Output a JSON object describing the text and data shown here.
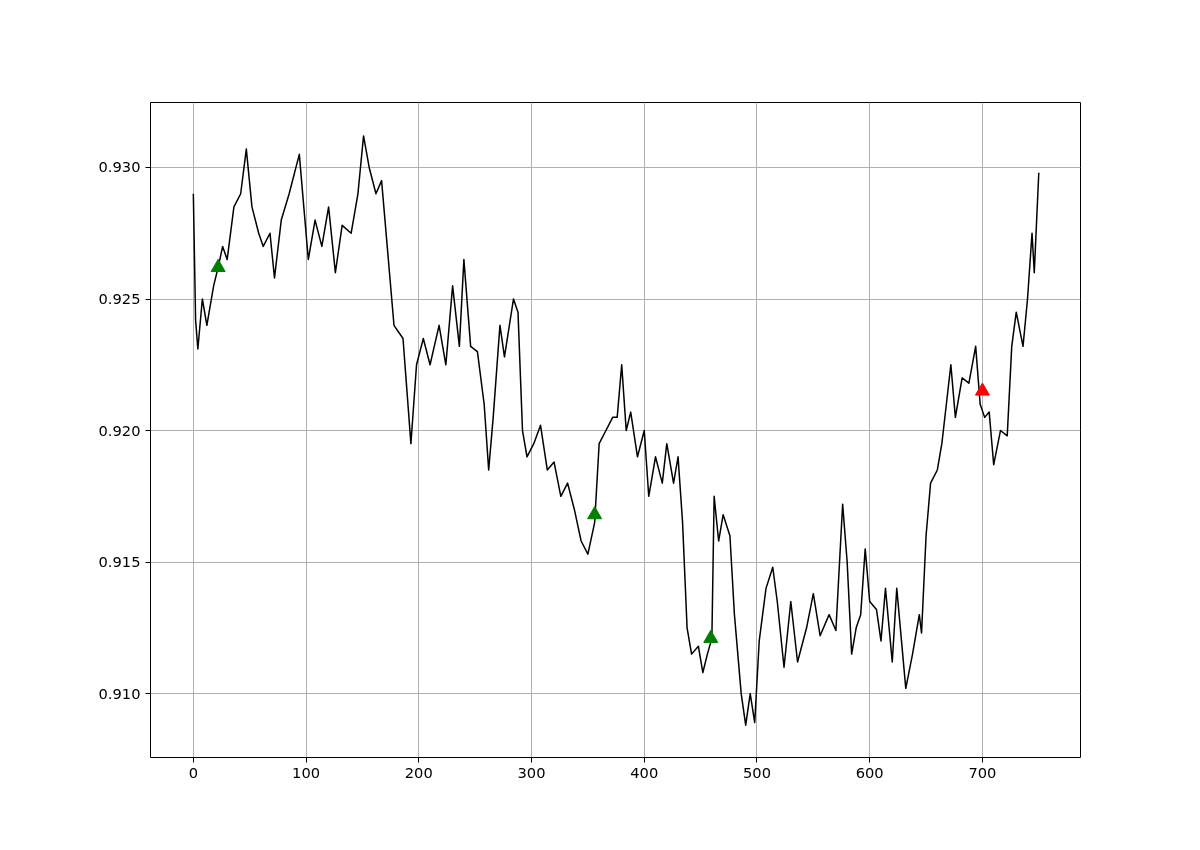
{
  "chart_data": {
    "type": "line",
    "xlim": [
      -38,
      787
    ],
    "ylim": [
      0.90757,
      0.93247
    ],
    "xticks": [
      0,
      100,
      200,
      300,
      400,
      500,
      600,
      700
    ],
    "yticks": [
      {
        "value": 0.91,
        "label": "0.910"
      },
      0.915,
      {
        "value": 0.92,
        "label": "0.920"
      },
      0.925,
      {
        "value": 0.93,
        "label": "0.930"
      }
    ],
    "grid": true,
    "line_style": "solid",
    "marker": "none",
    "series": [
      {
        "color": "#000000",
        "x": [
          0,
          2,
          4,
          8,
          12,
          18,
          22,
          26,
          30,
          36,
          42,
          47,
          52,
          58,
          62,
          68,
          72,
          78,
          85,
          94,
          98,
          102,
          108,
          114,
          120,
          126,
          132,
          140,
          146,
          151,
          156,
          162,
          167,
          172,
          178,
          186,
          193,
          198,
          204,
          210,
          218,
          224,
          230,
          236,
          240,
          246,
          252,
          258,
          262,
          266,
          272,
          276,
          284,
          288,
          292,
          296,
          302,
          308,
          314,
          320,
          326,
          332,
          338,
          344,
          350,
          356,
          360,
          366,
          372,
          376,
          380,
          384,
          388,
          394,
          400,
          404,
          410,
          416,
          420,
          426,
          430,
          434,
          438,
          442,
          448,
          452,
          456,
          460,
          462,
          466,
          470,
          476,
          480,
          486,
          490,
          494,
          498,
          502,
          508,
          514,
          518,
          524,
          530,
          536,
          544,
          550,
          556,
          564,
          570,
          576,
          580,
          584,
          588,
          592,
          596,
          600,
          606,
          610,
          614,
          620,
          624,
          632,
          638,
          644,
          646,
          650,
          654,
          660,
          664,
          668,
          672,
          676,
          682,
          688,
          694,
          698,
          702,
          706,
          710,
          716,
          722,
          726,
          730,
          736,
          740,
          744,
          746,
          750
        ],
        "values": [
          0.929,
          0.9242,
          0.9231,
          0.925,
          0.924,
          0.9255,
          0.9262,
          0.927,
          0.9265,
          0.9285,
          0.929,
          0.9307,
          0.9285,
          0.9275,
          0.927,
          0.9275,
          0.9258,
          0.928,
          0.929,
          0.9305,
          0.9285,
          0.9265,
          0.928,
          0.927,
          0.9285,
          0.926,
          0.9278,
          0.9275,
          0.929,
          0.9312,
          0.93,
          0.929,
          0.9295,
          0.927,
          0.924,
          0.9235,
          0.9195,
          0.9225,
          0.9235,
          0.9225,
          0.924,
          0.9225,
          0.9255,
          0.9232,
          0.9265,
          0.9232,
          0.923,
          0.921,
          0.9185,
          0.9205,
          0.924,
          0.9228,
          0.925,
          0.9245,
          0.92,
          0.919,
          0.9195,
          0.9202,
          0.9185,
          0.9188,
          0.9175,
          0.918,
          0.917,
          0.9158,
          0.9153,
          0.9165,
          0.9195,
          0.92,
          0.9205,
          0.9205,
          0.9225,
          0.92,
          0.9207,
          0.919,
          0.92,
          0.9175,
          0.919,
          0.918,
          0.9195,
          0.918,
          0.919,
          0.9165,
          0.9125,
          0.9115,
          0.9118,
          0.9108,
          0.9115,
          0.9121,
          0.9175,
          0.9158,
          0.9168,
          0.916,
          0.913,
          0.91,
          0.9088,
          0.91,
          0.9089,
          0.912,
          0.914,
          0.9148,
          0.9135,
          0.911,
          0.9135,
          0.9112,
          0.9125,
          0.9138,
          0.9122,
          0.913,
          0.9124,
          0.9172,
          0.915,
          0.9115,
          0.9125,
          0.913,
          0.9155,
          0.9135,
          0.9132,
          0.912,
          0.914,
          0.9112,
          0.914,
          0.9102,
          0.9115,
          0.913,
          0.9123,
          0.916,
          0.918,
          0.9185,
          0.9195,
          0.921,
          0.9225,
          0.9205,
          0.922,
          0.9218,
          0.9232,
          0.921,
          0.9205,
          0.9207,
          0.9187,
          0.92,
          0.9198,
          0.9232,
          0.9245,
          0.9232,
          0.925,
          0.9275,
          0.926,
          0.9298
        ]
      },
      {
        "type": "scatter",
        "color": "#008000",
        "marker": "triangle",
        "x": [
          22,
          356,
          459
        ],
        "values": [
          0.9262,
          0.9168,
          0.9121
        ]
      },
      {
        "type": "scatter",
        "color": "#ff0000",
        "marker": "triangle",
        "x": [
          700
        ],
        "values": [
          0.9215
        ]
      }
    ]
  }
}
